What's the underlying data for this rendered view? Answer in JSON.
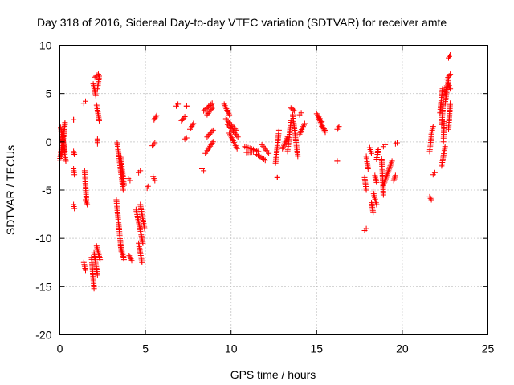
{
  "chart_data": {
    "type": "scatter",
    "title": "Day 318 of 2016, Sidereal Day-to-day VTEC variation (SDTVAR) for receiver amte",
    "xlabel": "GPS time / hours",
    "ylabel": "SDTVAR / TECUs",
    "xlim": [
      0,
      25
    ],
    "ylim": [
      -20,
      10
    ],
    "xticks": [
      0,
      5,
      10,
      15,
      20,
      25
    ],
    "yticks": [
      -20,
      -15,
      -10,
      -5,
      0,
      5,
      10
    ],
    "grid": true,
    "marker": "+",
    "color": "#ff0000",
    "series": [
      {
        "name": "SDTVAR",
        "segments": [
          [
            0.0,
            -1.9,
            0.3,
            1.8
          ],
          [
            0.05,
            1.5,
            0.3,
            -1.0
          ],
          [
            0.1,
            -1.5,
            0.3,
            2.0
          ],
          [
            0.15,
            0.5,
            0.35,
            -2.0
          ],
          [
            0.8,
            2.3,
            0.8,
            2.3
          ],
          [
            0.8,
            -1.0,
            0.85,
            -1.3
          ],
          [
            0.8,
            -2.8,
            0.85,
            -3.4
          ],
          [
            0.8,
            -6.5,
            0.85,
            -6.9
          ],
          [
            1.4,
            4.0,
            1.5,
            4.2
          ],
          [
            1.45,
            -3.0,
            1.55,
            -6.0
          ],
          [
            1.5,
            -6.0,
            1.6,
            -6.5
          ],
          [
            1.4,
            -12.5,
            1.5,
            -13.3
          ],
          [
            1.95,
            6.0,
            2.1,
            4.8
          ],
          [
            2.05,
            6.7,
            2.25,
            7.0
          ],
          [
            2.2,
            5.5,
            2.3,
            6.8
          ],
          [
            2.15,
            3.8,
            2.3,
            2.2
          ],
          [
            2.2,
            0.3,
            2.2,
            -0.2
          ],
          [
            1.85,
            -12.0,
            2.0,
            -15.2
          ],
          [
            2.0,
            -11.5,
            2.2,
            -13.8
          ],
          [
            2.15,
            -10.8,
            2.35,
            -12.2
          ],
          [
            3.35,
            -0.1,
            3.7,
            -5.0
          ],
          [
            3.55,
            -1.5,
            3.75,
            -4.5
          ],
          [
            3.3,
            -6.0,
            3.6,
            -11.5
          ],
          [
            3.55,
            -10.8,
            3.75,
            -12.2
          ],
          [
            4.0,
            -3.8,
            4.1,
            -4.0
          ],
          [
            4.05,
            -11.8,
            4.2,
            -12.3
          ],
          [
            4.6,
            -3.2,
            4.7,
            -3.0
          ],
          [
            4.45,
            -7.0,
            4.85,
            -10.5
          ],
          [
            4.6,
            -10.5,
            4.8,
            -12.5
          ],
          [
            4.7,
            -6.5,
            4.95,
            -9.0
          ],
          [
            5.1,
            -4.8,
            5.15,
            -4.6
          ],
          [
            5.5,
            2.3,
            5.65,
            2.7
          ],
          [
            5.4,
            -0.4,
            5.55,
            -0.1
          ],
          [
            5.45,
            -3.6,
            5.55,
            -4.0
          ],
          [
            6.8,
            3.7,
            6.9,
            3.9
          ],
          [
            7.1,
            2.2,
            7.3,
            2.6
          ],
          [
            7.4,
            3.7,
            7.4,
            3.7
          ],
          [
            7.3,
            0.3,
            7.4,
            0.4
          ],
          [
            7.6,
            1.3,
            7.8,
            1.9
          ],
          [
            8.3,
            -2.8,
            8.4,
            -3.0
          ],
          [
            8.4,
            3.2,
            8.9,
            4.0
          ],
          [
            8.6,
            2.8,
            8.95,
            3.6
          ],
          [
            8.5,
            -1.2,
            8.95,
            0.0
          ],
          [
            8.6,
            0.5,
            8.95,
            1.2
          ],
          [
            9.6,
            3.9,
            9.9,
            2.8
          ],
          [
            9.7,
            2.4,
            10.3,
            1.2
          ],
          [
            9.8,
            1.8,
            10.4,
            0.5
          ],
          [
            9.9,
            0.9,
            10.35,
            -0.7
          ],
          [
            10.8,
            -0.5,
            11.5,
            -0.9
          ],
          [
            10.9,
            -1.1,
            11.6,
            -1.0
          ],
          [
            11.5,
            -1.3,
            12.0,
            -1.9
          ],
          [
            11.8,
            -0.3,
            12.2,
            -1.2
          ],
          [
            12.6,
            -2.2,
            12.8,
            1.2
          ],
          [
            12.7,
            -3.7,
            12.7,
            -3.7
          ],
          [
            13.0,
            -0.7,
            13.3,
            0.5
          ],
          [
            13.3,
            -1.0,
            13.5,
            2.2
          ],
          [
            13.6,
            2.8,
            13.9,
            -1.5
          ],
          [
            13.5,
            3.5,
            13.7,
            3.2
          ],
          [
            14.0,
            0.8,
            14.3,
            1.9
          ],
          [
            14.0,
            2.8,
            14.1,
            3.0
          ],
          [
            15.0,
            2.9,
            15.3,
            2.1
          ],
          [
            15.1,
            2.5,
            15.5,
            1.0
          ],
          [
            15.3,
            1.6,
            15.5,
            1.2
          ],
          [
            16.2,
            1.3,
            16.3,
            1.6
          ],
          [
            16.2,
            -2.0,
            16.2,
            -2.0
          ],
          [
            17.8,
            -9.2,
            17.9,
            -9.0
          ],
          [
            17.8,
            -3.7,
            17.9,
            -5.0
          ],
          [
            17.9,
            -1.5,
            18.0,
            -2.8
          ],
          [
            18.1,
            -0.6,
            18.2,
            -1.2
          ],
          [
            18.2,
            -6.3,
            18.3,
            -7.3
          ],
          [
            18.3,
            -5.2,
            18.5,
            -6.5
          ],
          [
            18.4,
            -3.5,
            18.5,
            -4.2
          ],
          [
            18.5,
            -1.8,
            18.6,
            -0.8
          ],
          [
            18.8,
            -1.8,
            18.9,
            -5.5
          ],
          [
            18.9,
            -4.5,
            19.4,
            -2.0
          ],
          [
            18.9,
            -0.5,
            19.0,
            -0.3
          ],
          [
            19.5,
            -4.0,
            19.6,
            -3.5
          ],
          [
            19.6,
            -0.2,
            19.7,
            -0.1
          ],
          [
            21.6,
            -5.7,
            21.7,
            -6.0
          ],
          [
            21.6,
            -1.0,
            21.7,
            0.5
          ],
          [
            21.7,
            0.8,
            21.8,
            1.6
          ],
          [
            21.8,
            -3.4,
            21.9,
            -3.2
          ],
          [
            22.2,
            3.0,
            22.35,
            5.5
          ],
          [
            22.3,
            1.8,
            22.4,
            4.0
          ],
          [
            22.3,
            -2.5,
            22.5,
            -0.5
          ],
          [
            22.4,
            0.0,
            22.45,
            2.1
          ],
          [
            22.5,
            4.0,
            22.7,
            6.5
          ],
          [
            22.6,
            6.5,
            22.8,
            7.0
          ],
          [
            22.7,
            1.3,
            22.8,
            4.0
          ],
          [
            22.7,
            8.7,
            22.8,
            9.0
          ],
          [
            22.5,
            5.0,
            22.6,
            5.8
          ],
          [
            22.7,
            6.0,
            22.8,
            5.5
          ]
        ]
      }
    ]
  }
}
